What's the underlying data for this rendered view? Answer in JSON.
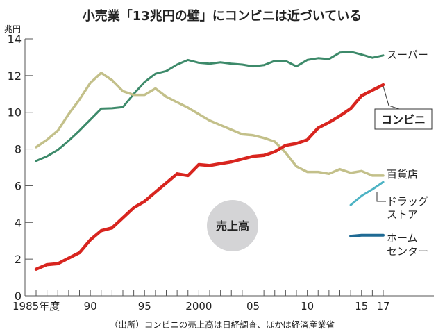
{
  "chart_data": {
    "type": "line",
    "title": "小売業「13兆円の壁」にコンビニは近づいている",
    "ylabel": "兆円",
    "xlabel": "",
    "ylim": [
      0,
      14
    ],
    "xlim": [
      1985,
      2017
    ],
    "yticks": [
      0,
      2,
      4,
      6,
      8,
      10,
      12,
      14
    ],
    "xtick_labels": [
      {
        "year": 1985,
        "label": "1985年度"
      },
      {
        "year": 1990,
        "label": "90"
      },
      {
        "year": 1995,
        "label": "95"
      },
      {
        "year": 2000,
        "label": "2000"
      },
      {
        "year": 2005,
        "label": "05"
      },
      {
        "year": 2010,
        "label": "10"
      },
      {
        "year": 2015,
        "label": "15"
      },
      {
        "year": 2017,
        "label": "17"
      }
    ],
    "grid": false,
    "annotation": "売上高",
    "source": "（出所）コンビニの売上高は日経調査、ほかは経済産業省",
    "series": [
      {
        "name": "スーパー",
        "color": "#3d8a6a",
        "width": 3,
        "start": 1985,
        "values": [
          7.35,
          7.6,
          7.95,
          8.45,
          9.0,
          9.6,
          10.2,
          10.22,
          10.28,
          11.0,
          11.65,
          12.1,
          12.25,
          12.6,
          12.85,
          12.7,
          12.65,
          12.72,
          12.65,
          12.6,
          12.5,
          12.57,
          12.8,
          12.8,
          12.5,
          12.85,
          12.95,
          12.9,
          13.25,
          13.3,
          13.15,
          12.97,
          13.1
        ]
      },
      {
        "name": "百貨店",
        "color": "#c3c08a",
        "width": 3.5,
        "start": 1985,
        "values": [
          8.1,
          8.5,
          9.0,
          9.9,
          10.7,
          11.6,
          12.15,
          11.75,
          11.15,
          10.95,
          10.95,
          11.3,
          10.85,
          10.55,
          10.25,
          9.9,
          9.55,
          9.3,
          9.05,
          8.8,
          8.75,
          8.6,
          8.4,
          7.8,
          7.05,
          6.75,
          6.75,
          6.65,
          6.9,
          6.7,
          6.8,
          6.55,
          6.55
        ]
      },
      {
        "name": "コンビニ",
        "color": "#d8251f",
        "width": 4.5,
        "start": 1985,
        "boxed": true,
        "values": [
          1.45,
          1.7,
          1.75,
          2.05,
          2.35,
          3.05,
          3.55,
          3.7,
          4.25,
          4.8,
          5.15,
          5.65,
          6.15,
          6.65,
          6.55,
          7.15,
          7.1,
          7.2,
          7.3,
          7.45,
          7.6,
          7.65,
          7.85,
          8.2,
          8.3,
          8.5,
          9.15,
          9.45,
          9.8,
          10.2,
          10.9,
          11.2,
          11.5
        ]
      },
      {
        "name": "ドラッグストア",
        "label_lines": [
          "ドラッグ",
          "ストア"
        ],
        "color": "#4db3c4",
        "width": 3,
        "start": 2014,
        "values": [
          4.95,
          5.45,
          5.8,
          6.2
        ]
      },
      {
        "name": "ホームセンター",
        "label_lines": [
          "ホーム",
          "センター"
        ],
        "color": "#1f6a94",
        "width": 4,
        "start": 2014,
        "values": [
          3.25,
          3.3,
          3.3,
          3.3
        ]
      }
    ]
  }
}
